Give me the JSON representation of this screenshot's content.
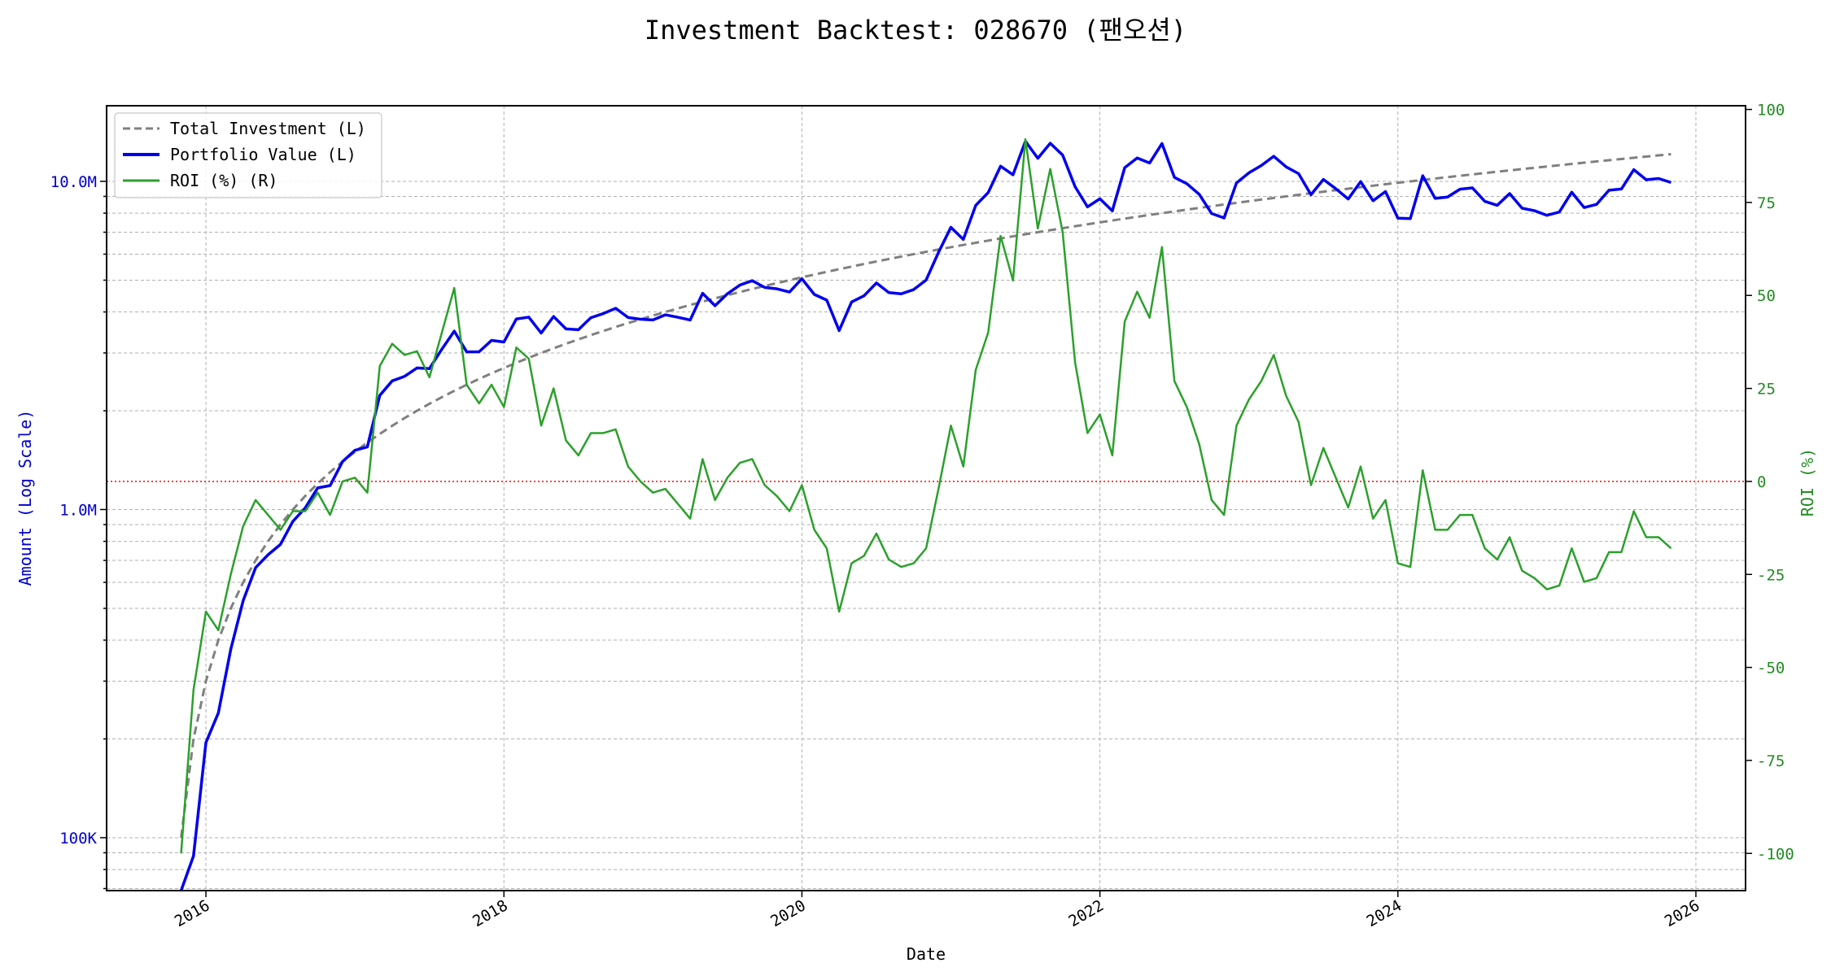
{
  "chart_data": {
    "type": "line",
    "title": "Investment Backtest: 028670 (팬오션)",
    "xlabel": "Date",
    "ylabel_left": "Amount (Log Scale)",
    "ylabel_right": "ROI (%)",
    "left_scale": "log",
    "xlim": [
      "2015-05",
      "2026-05"
    ],
    "ylim_left": [
      69000,
      17000000
    ],
    "ylim_right": [
      -110,
      101
    ],
    "x_ticks": [
      "2016",
      "2018",
      "2020",
      "2022",
      "2024",
      "2026"
    ],
    "y_ticks_left": [
      {
        "value": 100000,
        "label": "100K"
      },
      {
        "value": 1000000,
        "label": "1.0M"
      },
      {
        "value": 10000000,
        "label": "10.0M"
      }
    ],
    "y_ticks_right": [
      -100,
      -75,
      -50,
      -25,
      0,
      25,
      50,
      75,
      100
    ],
    "grid": true,
    "legend_position": "top-left",
    "reference_line": {
      "axis": "right",
      "value": 0,
      "color": "#ff0000",
      "style": "dotted"
    },
    "colors": {
      "investment": "#808080",
      "portfolio": "#0000ee",
      "roi": "#2ca02c",
      "left_axis": "#0000cc",
      "right_axis": "#228b22"
    },
    "dates": [
      "2015-11",
      "2015-12",
      "2016-01",
      "2016-02",
      "2016-03",
      "2016-04",
      "2016-05",
      "2016-06",
      "2016-07",
      "2016-08",
      "2016-09",
      "2016-10",
      "2016-11",
      "2016-12",
      "2017-01",
      "2017-02",
      "2017-03",
      "2017-04",
      "2017-05",
      "2017-06",
      "2017-07",
      "2017-08",
      "2017-09",
      "2017-10",
      "2017-11",
      "2017-12",
      "2018-01",
      "2018-02",
      "2018-03",
      "2018-04",
      "2018-05",
      "2018-06",
      "2018-07",
      "2018-08",
      "2018-09",
      "2018-10",
      "2018-11",
      "2018-12",
      "2019-01",
      "2019-02",
      "2019-03",
      "2019-04",
      "2019-05",
      "2019-06",
      "2019-07",
      "2019-08",
      "2019-09",
      "2019-10",
      "2019-11",
      "2019-12",
      "2020-01",
      "2020-02",
      "2020-03",
      "2020-04",
      "2020-05",
      "2020-06",
      "2020-07",
      "2020-08",
      "2020-09",
      "2020-10",
      "2020-11",
      "2020-12",
      "2021-01",
      "2021-02",
      "2021-03",
      "2021-04",
      "2021-05",
      "2021-06",
      "2021-07",
      "2021-08",
      "2021-09",
      "2021-10",
      "2021-11",
      "2021-12",
      "2022-01",
      "2022-02",
      "2022-03",
      "2022-04",
      "2022-05",
      "2022-06",
      "2022-07",
      "2022-08",
      "2022-09",
      "2022-10",
      "2022-11",
      "2022-12",
      "2023-01",
      "2023-02",
      "2023-03",
      "2023-04",
      "2023-05",
      "2023-06",
      "2023-07",
      "2023-08",
      "2023-09",
      "2023-10",
      "2023-11",
      "2023-12",
      "2024-01",
      "2024-02",
      "2024-03",
      "2024-04",
      "2024-05",
      "2024-06",
      "2024-07",
      "2024-08",
      "2024-09",
      "2024-10",
      "2024-11",
      "2024-12",
      "2025-01",
      "2025-02",
      "2025-03",
      "2025-04",
      "2025-05",
      "2025-06",
      "2025-07",
      "2025-08",
      "2025-09",
      "2025-10",
      "2025-11"
    ],
    "series": [
      {
        "name": "Total Investment (L)",
        "axis": "left",
        "style": "dashed",
        "values": [
          100000,
          200000,
          300000,
          400000,
          500000,
          600000,
          700000,
          800000,
          900000,
          1000000,
          1100000,
          1200000,
          1300000,
          1400000,
          1500000,
          1600000,
          1700000,
          1800000,
          1900000,
          2000000,
          2100000,
          2200000,
          2300000,
          2400000,
          2500000,
          2600000,
          2700000,
          2800000,
          2900000,
          3000000,
          3100000,
          3200000,
          3300000,
          3400000,
          3500000,
          3600000,
          3700000,
          3800000,
          3900000,
          4000000,
          4100000,
          4200000,
          4300000,
          4400000,
          4500000,
          4600000,
          4700000,
          4800000,
          4900000,
          5000000,
          5100000,
          5200000,
          5300000,
          5400000,
          5500000,
          5600000,
          5700000,
          5800000,
          5900000,
          6000000,
          6100000,
          6200000,
          6300000,
          6400000,
          6500000,
          6600000,
          6700000,
          6800000,
          6900000,
          7000000,
          7100000,
          7200000,
          7300000,
          7400000,
          7500000,
          7600000,
          7700000,
          7800000,
          7900000,
          8000000,
          8100000,
          8200000,
          8300000,
          8400000,
          8500000,
          8600000,
          8700000,
          8800000,
          8900000,
          9000000,
          9100000,
          9200000,
          9300000,
          9400000,
          9500000,
          9600000,
          9700000,
          9800000,
          9900000,
          10000000,
          10100000,
          10200000,
          10300000,
          10400000,
          10500000,
          10600000,
          10700000,
          10800000,
          10900000,
          11000000,
          11100000,
          11200000,
          11300000,
          11400000,
          11500000,
          11600000,
          11700000,
          11800000,
          11900000,
          12000000,
          12100000
        ]
      },
      {
        "name": "Portfolio Value (L)",
        "axis": "left",
        "style": "solid",
        "derived_from": "Total Investment (L) x (1 + ROI/100)"
      },
      {
        "name": "ROI (%) (R)",
        "axis": "right",
        "style": "solid",
        "values": [
          -100,
          -56,
          -35,
          -40,
          -25,
          -12,
          -5,
          -9,
          -13,
          -8,
          -8,
          -3,
          -9,
          0,
          1,
          -3,
          31,
          37,
          34,
          35,
          28,
          40,
          52,
          26,
          21,
          26,
          20,
          36,
          33,
          15,
          25,
          11,
          7,
          13,
          13,
          14,
          4,
          0,
          -3,
          -2,
          -6,
          -10,
          6,
          -5,
          1,
          5,
          6,
          -1,
          -4,
          -8,
          -1,
          -13,
          -18,
          -35,
          -22,
          -20,
          -14,
          -21,
          -23,
          -22,
          -18,
          -2,
          15,
          4,
          30,
          40,
          66,
          54,
          92,
          68,
          84,
          67,
          32,
          13,
          18,
          7,
          43,
          51,
          44,
          63,
          27,
          20,
          10,
          -5,
          -9,
          15,
          22,
          27,
          34,
          23,
          16,
          -1,
          9,
          1,
          -7,
          4,
          -10,
          -5,
          -22,
          -23,
          3,
          -13,
          -13,
          -9,
          -9,
          -18,
          -21,
          -15,
          -24,
          -26,
          -29,
          -28,
          -18,
          -27,
          -26,
          -19,
          -19,
          -8,
          -15,
          -15,
          -18
        ]
      }
    ]
  }
}
